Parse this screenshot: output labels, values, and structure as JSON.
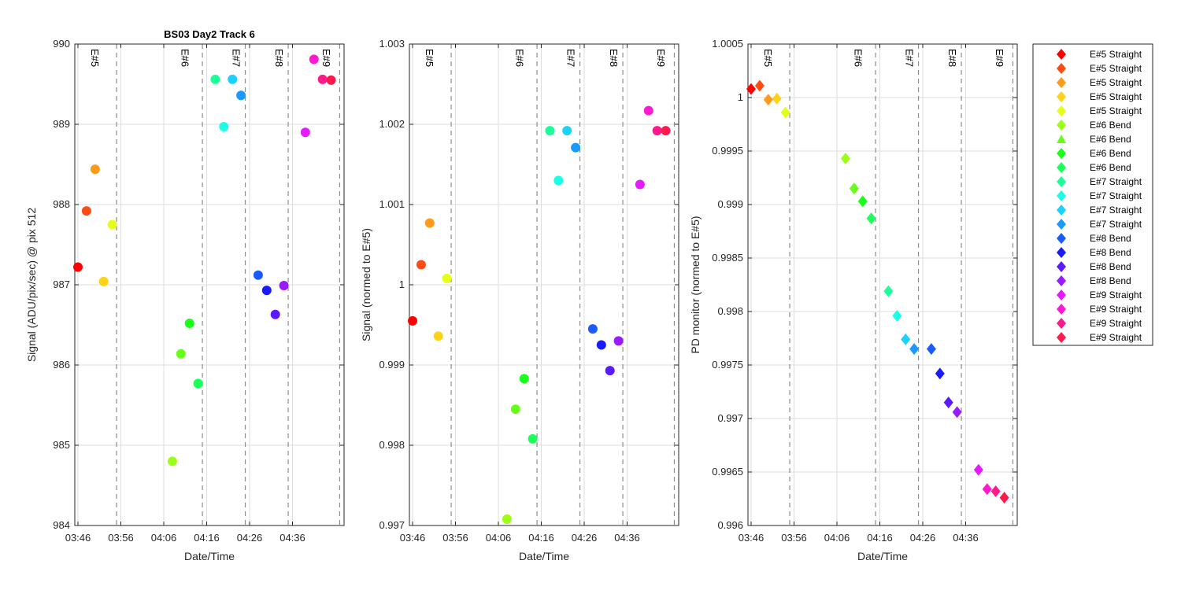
{
  "chart_data": [
    {
      "type": "scatter",
      "title": "BS03 Day2 Track 6",
      "xlabel": "Date/Time",
      "ylabel": "Signal (ADU/pix/sec) @ pix 512",
      "xlim": [
        "03:45",
        "04:50"
      ],
      "ylim": [
        984,
        990
      ],
      "yticks": [
        984,
        985,
        986,
        987,
        988,
        989,
        990
      ],
      "ytick_labels": [
        "984",
        "985",
        "986",
        "987",
        "988",
        "989",
        "990"
      ],
      "event_lines": [
        "03:55",
        "04:27",
        "04:47"
      ],
      "event_labels": [
        "E#5",
        "E#6",
        "E#7",
        "E#8",
        "E#9"
      ],
      "points": [
        {
          "x": "03:46",
          "y": 987.22
        },
        {
          "x": "03:48",
          "y": 987.92
        },
        {
          "x": "03:50",
          "y": 988.44
        },
        {
          "x": "03:52",
          "y": 987.04
        },
        {
          "x": "03:54",
          "y": 987.75
        },
        {
          "x": "04:08",
          "y": 984.8
        },
        {
          "x": "04:10",
          "y": 986.14
        },
        {
          "x": "04:12",
          "y": 986.52
        },
        {
          "x": "04:14",
          "y": 985.77
        },
        {
          "x": "04:18",
          "y": 989.56
        },
        {
          "x": "04:20",
          "y": 988.97
        },
        {
          "x": "04:22",
          "y": 989.56
        },
        {
          "x": "04:24",
          "y": 989.36
        },
        {
          "x": "04:28",
          "y": 987.12
        },
        {
          "x": "04:30",
          "y": 986.93
        },
        {
          "x": "04:32",
          "y": 986.63
        },
        {
          "x": "04:34",
          "y": 986.99
        },
        {
          "x": "04:39",
          "y": 988.9
        },
        {
          "x": "04:41",
          "y": 989.81
        },
        {
          "x": "04:43",
          "y": 989.56
        },
        {
          "x": "04:45",
          "y": 989.55
        }
      ]
    },
    {
      "type": "scatter",
      "xlabel": "Date/Time",
      "ylabel": "Signal (normed to E#5)",
      "xlim": [
        "03:45",
        "04:50"
      ],
      "ylim": [
        0.997,
        1.003
      ],
      "yticks": [
        0.997,
        0.998,
        0.999,
        1.0,
        1.001,
        1.002,
        1.003
      ],
      "ytick_labels": [
        "0.997",
        "0.998",
        "0.999",
        "1",
        "1.001",
        "1.002",
        "1.003"
      ],
      "event_lines": [
        "03:55",
        "04:27",
        "04:47"
      ],
      "event_labels": [
        "E#5",
        "E#6",
        "E#7",
        "E#8",
        "E#9"
      ],
      "points": [
        {
          "x": "03:46",
          "y": 0.99955
        },
        {
          "x": "03:48",
          "y": 1.00025
        },
        {
          "x": "03:50",
          "y": 1.00077
        },
        {
          "x": "03:52",
          "y": 0.99936
        },
        {
          "x": "03:54",
          "y": 1.00008
        },
        {
          "x": "04:08",
          "y": 0.99708
        },
        {
          "x": "04:10",
          "y": 0.99845
        },
        {
          "x": "04:12",
          "y": 0.99883
        },
        {
          "x": "04:14",
          "y": 0.99808
        },
        {
          "x": "04:18",
          "y": 1.00192
        },
        {
          "x": "04:20",
          "y": 1.0013
        },
        {
          "x": "04:22",
          "y": 1.00192
        },
        {
          "x": "04:24",
          "y": 1.00171
        },
        {
          "x": "04:28",
          "y": 0.99945
        },
        {
          "x": "04:30",
          "y": 0.99925
        },
        {
          "x": "04:32",
          "y": 0.99893
        },
        {
          "x": "04:34",
          "y": 0.9993
        },
        {
          "x": "04:39",
          "y": 1.00125
        },
        {
          "x": "04:41",
          "y": 1.00217
        },
        {
          "x": "04:43",
          "y": 1.00192
        },
        {
          "x": "04:45",
          "y": 1.00192
        }
      ]
    },
    {
      "type": "scatter",
      "xlabel": "Date/Time",
      "ylabel": "PD monitor (normed to E#5)",
      "xlim": [
        "03:45",
        "04:50"
      ],
      "ylim": [
        0.996,
        1.0005
      ],
      "yticks": [
        0.996,
        0.9965,
        0.997,
        0.9975,
        0.998,
        0.9985,
        0.999,
        0.9995,
        1.0,
        1.0005
      ],
      "ytick_labels": [
        "0.996",
        "0.9965",
        "0.997",
        "0.9975",
        "0.998",
        "0.9985",
        "0.999",
        "0.9995",
        "1",
        "1.0005"
      ],
      "event_lines": [
        "03:55",
        "04:27",
        "04:47"
      ],
      "event_labels": [
        "E#5",
        "E#6",
        "E#7",
        "E#8",
        "E#9"
      ],
      "points": [
        {
          "x": "03:46",
          "y": 1.00008
        },
        {
          "x": "03:48",
          "y": 1.00011
        },
        {
          "x": "03:50",
          "y": 0.99998
        },
        {
          "x": "03:52",
          "y": 0.99999
        },
        {
          "x": "03:54",
          "y": 0.99986
        },
        {
          "x": "04:08",
          "y": 0.99943
        },
        {
          "x": "04:10",
          "y": 0.99915
        },
        {
          "x": "04:12",
          "y": 0.99903
        },
        {
          "x": "04:14",
          "y": 0.99887
        },
        {
          "x": "04:18",
          "y": 0.99819
        },
        {
          "x": "04:20",
          "y": 0.99796
        },
        {
          "x": "04:22",
          "y": 0.99774
        },
        {
          "x": "04:24",
          "y": 0.99765
        },
        {
          "x": "04:28",
          "y": 0.99765
        },
        {
          "x": "04:30",
          "y": 0.99742
        },
        {
          "x": "04:32",
          "y": 0.99715
        },
        {
          "x": "04:34",
          "y": 0.99706
        },
        {
          "x": "04:39",
          "y": 0.99652
        },
        {
          "x": "04:41",
          "y": 0.99634
        },
        {
          "x": "04:43",
          "y": 0.99632
        },
        {
          "x": "04:45",
          "y": 0.99626
        }
      ]
    }
  ],
  "x_ticks": [
    "03:46",
    "03:56",
    "04:06",
    "04:16",
    "04:26",
    "04:36"
  ],
  "legend": {
    "placement": "right",
    "entries": [
      {
        "label": "E#5 Straight",
        "color": "#ff0000",
        "marker": "diamond"
      },
      {
        "label": "E#5 Straight",
        "color": "#ff4b14",
        "marker": "diamond"
      },
      {
        "label": "E#5 Straight",
        "color": "#ff9a1a",
        "marker": "diamond"
      },
      {
        "label": "E#5 Straight",
        "color": "#ffd21a",
        "marker": "diamond"
      },
      {
        "label": "E#5 Straight",
        "color": "#e6ff1a",
        "marker": "diamond"
      },
      {
        "label": "E#6 Bend",
        "color": "#9cff1a",
        "marker": "diamond"
      },
      {
        "label": "E#6 Bend",
        "color": "#66ff1a",
        "marker": "triangle"
      },
      {
        "label": "E#6 Bend",
        "color": "#1aff1a",
        "marker": "diamond"
      },
      {
        "label": "E#6 Bend",
        "color": "#1aff5a",
        "marker": "diamond"
      },
      {
        "label": "E#7 Straight",
        "color": "#1aff9a",
        "marker": "diamond"
      },
      {
        "label": "E#7 Straight",
        "color": "#1affe6",
        "marker": "diamond"
      },
      {
        "label": "E#7 Straight",
        "color": "#1ad2ff",
        "marker": "diamond"
      },
      {
        "label": "E#7 Straight",
        "color": "#1a9aff",
        "marker": "diamond"
      },
      {
        "label": "E#8 Bend",
        "color": "#1a5aff",
        "marker": "diamond"
      },
      {
        "label": "E#8 Bend",
        "color": "#1a1aff",
        "marker": "diamond"
      },
      {
        "label": "E#8 Bend",
        "color": "#5a1aff",
        "marker": "diamond"
      },
      {
        "label": "E#8 Bend",
        "color": "#9a1aff",
        "marker": "diamond"
      },
      {
        "label": "E#9 Straight",
        "color": "#e61aff",
        "marker": "diamond"
      },
      {
        "label": "E#9 Straight",
        "color": "#ff1ad2",
        "marker": "diamond"
      },
      {
        "label": "E#9 Straight",
        "color": "#ff1a8c",
        "marker": "diamond"
      },
      {
        "label": "E#9 Straight",
        "color": "#ff1a4b",
        "marker": "diamond"
      }
    ]
  },
  "point_colors": [
    "#ff0000",
    "#ff4b14",
    "#ff9a1a",
    "#ffd21a",
    "#e6ff1a",
    "#9cff1a",
    "#66ff1a",
    "#1aff1a",
    "#1aff5a",
    "#1aff9a",
    "#1affe6",
    "#1ad2ff",
    "#1a9aff",
    "#1a5aff",
    "#1a1aff",
    "#5a1aff",
    "#9a1aff",
    "#e61aff",
    "#ff1ad2",
    "#ff1a8c",
    "#ff1a4b"
  ],
  "grid": true
}
